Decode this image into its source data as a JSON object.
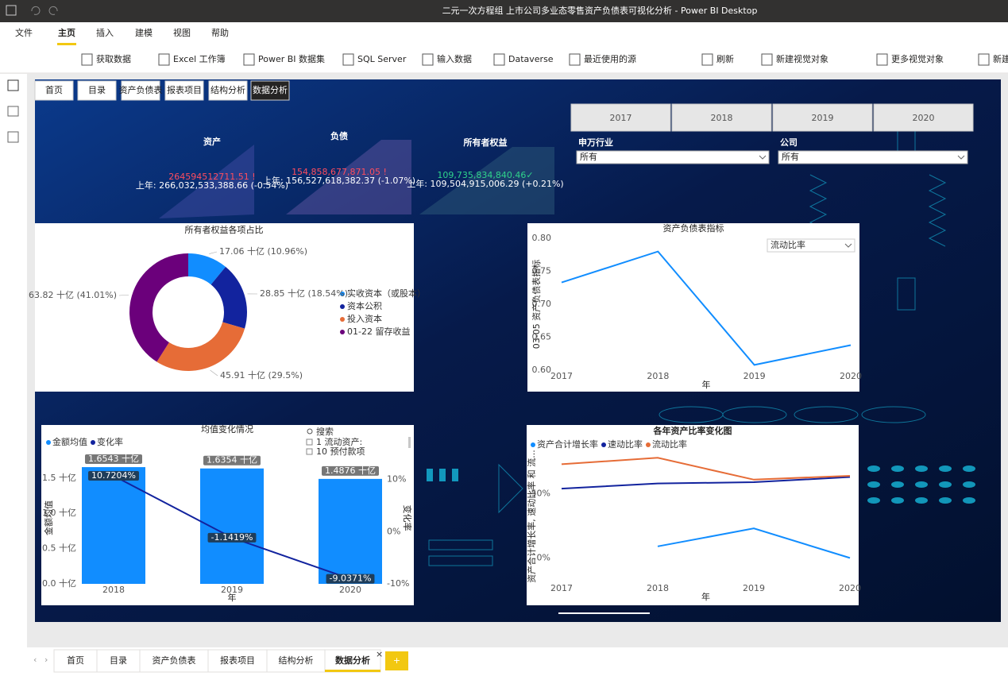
{
  "window": {
    "title": "二元一次方程组 上市公司多业态零售资产负债表可视化分析 - Power BI Desktop"
  },
  "menu": [
    "文件",
    "主页",
    "插入",
    "建模",
    "视图",
    "帮助"
  ],
  "ribbon": [
    "获取数据",
    "Excel 工作簿",
    "Power BI 数据集",
    "SQL Server",
    "输入数据",
    "Dataverse",
    "最近使用的源",
    "刷新",
    "新建视觉对象",
    "更多视觉对象",
    "新建"
  ],
  "nav_buttons": [
    "首页",
    "目录",
    "资产负债表",
    "报表项目",
    "结构分析",
    "数据分析"
  ],
  "year_slicer": [
    "2017",
    "2018",
    "2019",
    "2020"
  ],
  "filters": [
    {
      "label": "申万行业",
      "value": "所有"
    },
    {
      "label": "公司",
      "value": "所有"
    }
  ],
  "kpis": [
    {
      "label": "资产",
      "value": "264594512711.51 !",
      "previous": "上年: 266,032,533,388.66 (-0.54%)"
    },
    {
      "label": "负债",
      "value": "154,858,677,871.05 !",
      "previous": "上年: 156,527,618,382.37 (-1.07%)"
    },
    {
      "label": "所有者权益",
      "value": "109,735,834,840.46✓",
      "previous": "上年: 109,504,915,006.29 (+0.21%)"
    }
  ],
  "page_tabs": [
    "首页",
    "目录",
    "资产负债表",
    "报表项目",
    "结构分析",
    "数据分析"
  ],
  "chart_data": [
    {
      "type": "donut",
      "title": "所有者权益各项占比",
      "categories": [
        "实收资本（或股本）",
        "资本公积",
        "投入资本",
        "01-22 留存收益"
      ],
      "values": [
        17.06,
        28.85,
        45.91,
        63.82
      ],
      "value_labels": [
        "17.06 十亿 (10.96%)",
        "28.85 十亿 (18.54%)",
        "45.91 十亿 (29.5%)",
        "63.82 十亿 (41.01%)"
      ],
      "colors": [
        "#118dff",
        "#12239e",
        "#e66c37",
        "#6b007b"
      ]
    },
    {
      "type": "line",
      "title": "资产负债表指标",
      "dropdown": "流动比率",
      "categories": [
        "2017",
        "2018",
        "2019",
        "2020"
      ],
      "values": [
        0.733,
        0.78,
        0.608,
        0.638
      ],
      "color": "#118dff",
      "x_label": "年",
      "y_label": "03-05 资产负债表指标",
      "ylim": [
        0.6,
        0.8
      ],
      "yticks": [
        {
          "value": 0.6,
          "label": "0.60"
        },
        {
          "value": 0.65,
          "label": "0.65"
        },
        {
          "value": 0.7,
          "label": "0.70"
        },
        {
          "value": 0.75,
          "label": "0.75"
        },
        {
          "value": 0.8,
          "label": "0.80"
        }
      ]
    },
    {
      "type": "combo",
      "title": "均值变化情况",
      "categories": [
        "2018",
        "2019",
        "2020"
      ],
      "x_label": "年",
      "y_label": "金额均值",
      "y2_label": "变化率",
      "series": [
        {
          "name": "金额均值",
          "color": "#118dff",
          "values": [
            1.6543,
            1.6354,
            1.4876
          ],
          "value_labels": [
            "1.6543 十亿",
            "1.6354 十亿",
            "1.4876 十亿"
          ]
        },
        {
          "name": "变化率",
          "color": "#12239e",
          "axis": "y2",
          "values": [
            10.7204,
            -1.1419,
            -9.0371
          ],
          "value_labels": [
            "10.7204%",
            "-1.1419%",
            "-9.0371%"
          ]
        }
      ],
      "ylim": [
        0,
        1.7
      ],
      "yticks": [
        {
          "value": 0,
          "label": "0.0 十亿"
        },
        {
          "value": 0.5,
          "label": "0.5 十亿"
        },
        {
          "value": 1,
          "label": "1.0 十亿"
        },
        {
          "value": 1.5,
          "label": "1.5 十亿"
        }
      ],
      "y2lim": [
        -10,
        13
      ],
      "y2ticks": [
        {
          "value": -10,
          "label": "-10%"
        },
        {
          "value": 0,
          "label": "0%"
        },
        {
          "value": 10,
          "label": "10%"
        }
      ],
      "search": {
        "placeholder": "搜索",
        "items": [
          "1 流动资产:",
          "10 预付款项"
        ]
      }
    },
    {
      "type": "line",
      "title": "各年资产比率变化图",
      "categories": [
        "2017",
        "2018",
        "2019",
        "2020"
      ],
      "x_label": "年",
      "y_label": "资产合计增长率, 速动比率 和 流...",
      "series": [
        {
          "name": "资产合计增长率",
          "color": "#118dff",
          "values": [
            null,
            9,
            23,
            0
          ]
        },
        {
          "name": "速动比率",
          "color": "#12239e",
          "values": [
            54,
            58,
            59,
            63
          ]
        },
        {
          "name": "流动比率",
          "color": "#e66c37",
          "values": [
            73,
            78,
            61,
            64
          ]
        }
      ],
      "ylim": [
        -14,
        85
      ],
      "yticks": [
        {
          "value": 0,
          "label": "0%"
        },
        {
          "value": 50,
          "label": "50%"
        }
      ]
    }
  ]
}
